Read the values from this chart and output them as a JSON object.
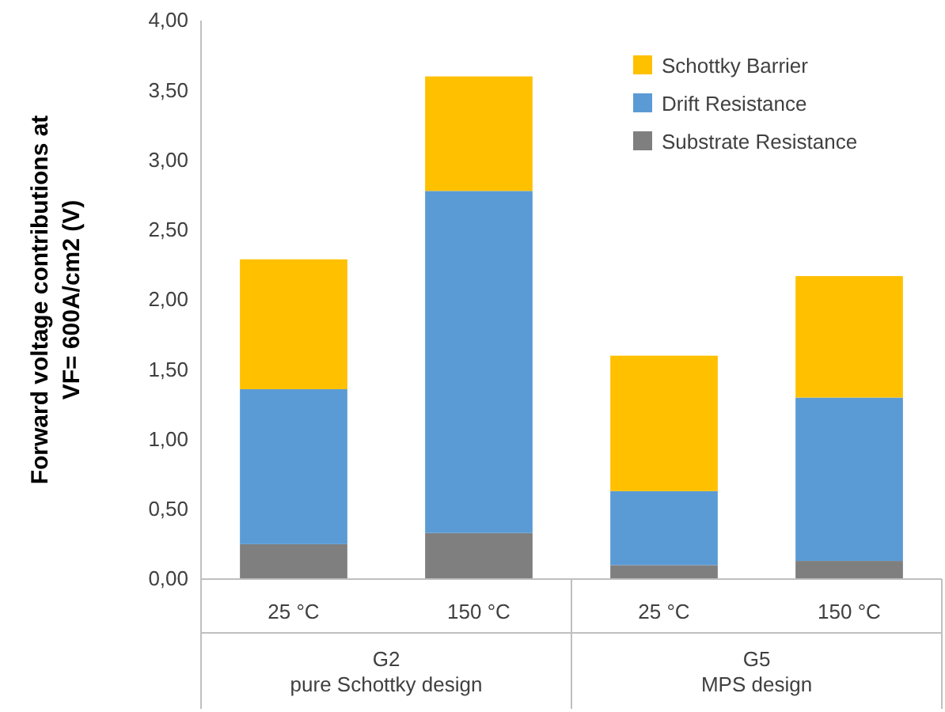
{
  "chart_data": {
    "type": "bar",
    "stacked": true,
    "ylabel": "Forward voltage contributions at VF= 600A/cm2 (V)",
    "categories": [
      "25 °C",
      "150 °C",
      "25 °C",
      "150 °C"
    ],
    "annotations": [
      "G2\npure Schottky design",
      "G5\nMPS design"
    ],
    "series": [
      {
        "name": "Substrate Resistance",
        "color": "#7f7f7f",
        "values": [
          0.25,
          0.33,
          0.1,
          0.13
        ]
      },
      {
        "name": "Drift Resistance",
        "color": "#5b9bd5",
        "values": [
          1.11,
          2.45,
          0.53,
          1.17
        ]
      },
      {
        "name": "Schottky Barrier",
        "color": "#ffc000",
        "values": [
          0.93,
          0.82,
          0.97,
          0.87
        ]
      }
    ],
    "ylim": [
      0,
      4
    ],
    "yticks": [
      {
        "value": 0,
        "label": "0,00"
      },
      {
        "value": 0.5,
        "label": "0,50"
      },
      {
        "value": 1,
        "label": "1,00"
      },
      {
        "value": 1.5,
        "label": "1,50"
      },
      {
        "value": 2,
        "label": "2,00"
      },
      {
        "value": 2.5,
        "label": "2,50"
      },
      {
        "value": 3,
        "label": "3,00"
      },
      {
        "value": 3.5,
        "label": "3,50"
      },
      {
        "value": 4,
        "label": "4,00"
      }
    ],
    "grid": false,
    "legend": "top right"
  }
}
